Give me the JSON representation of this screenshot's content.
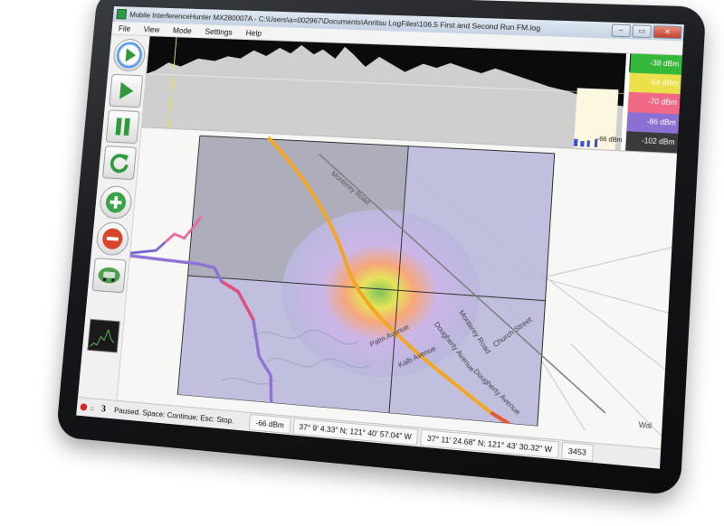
{
  "window": {
    "title": "Mobile InterferenceHunter MX280007A - C:\\Users\\a=002967\\Documents\\Anritsu LogFiles\\106.5 First and Second Run FM.log",
    "controls": [
      "–",
      "▭",
      "✕"
    ]
  },
  "menu": [
    "File",
    "View",
    "Mode",
    "Settings",
    "Help"
  ],
  "toolbar": {
    "buttons": [
      "play-circle",
      "play",
      "pause",
      "refresh",
      "zoom-in",
      "zoom-out",
      "car"
    ]
  },
  "legend": {
    "levels": [
      "-38 dBm",
      "-54 dBm",
      "-70 dBm",
      "-86 dBm",
      "-102 dBm"
    ],
    "colors": [
      "#36b83a",
      "#e9e04a",
      "#f06a86",
      "#8b6fd1",
      "#3a3a3a"
    ],
    "level_readout": "-66 dBm"
  },
  "map": {
    "roads": [
      "Monterey Road",
      "Monterey Road",
      "Dougherty Avenue",
      "Dougherty Avenue",
      "Palm Avenue",
      "Kalb Avenue",
      "Church Street",
      "Wal"
    ]
  },
  "status": {
    "count": "3",
    "message": "Paused.  Space: Continue; Esc: Stop.",
    "level": "-66 dBm",
    "cursor_coords": "37° 9' 4.33\" N; 121° 40' 57.04\" W",
    "center_coords": "37° 11' 24.68\" N; 121° 43' 30.32\" W",
    "points": "3453"
  }
}
